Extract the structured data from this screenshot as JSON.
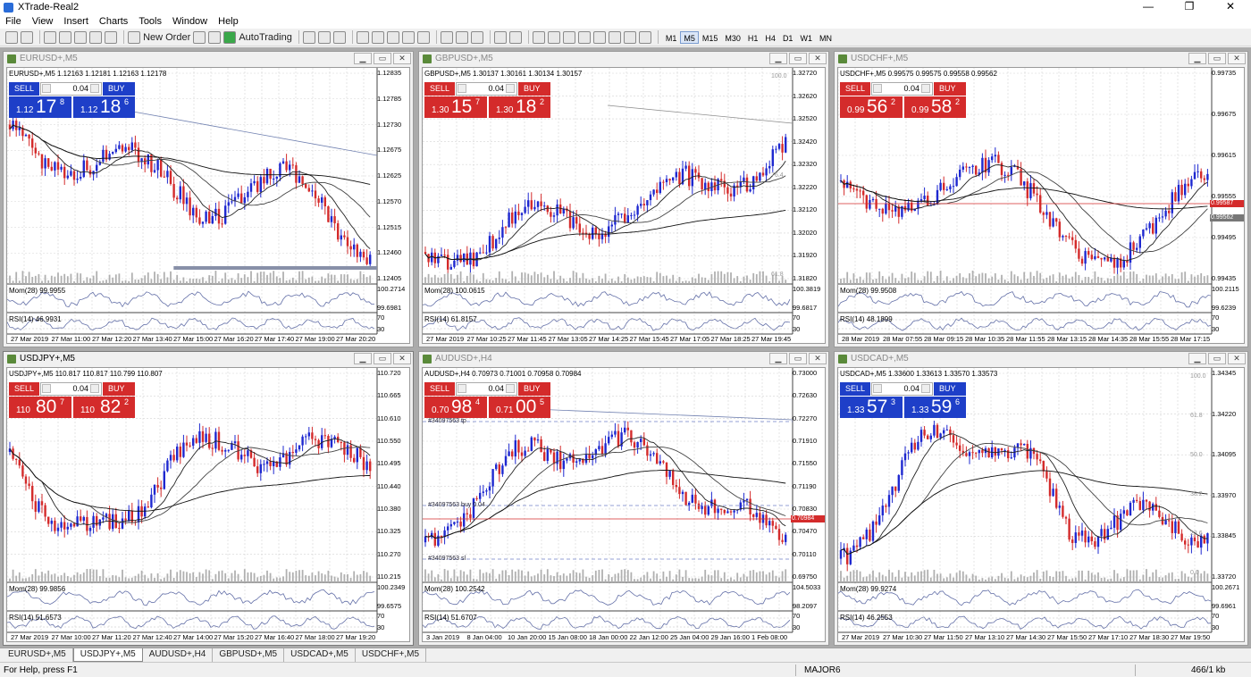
{
  "window": {
    "title": "XTrade-Real2",
    "minimize": "—",
    "maximize": "❐",
    "close": "✕"
  },
  "menu": [
    "File",
    "View",
    "Insert",
    "Charts",
    "Tools",
    "Window",
    "Help"
  ],
  "toolbar": {
    "new_order": "New Order",
    "auto_trading": "AutoTrading",
    "timeframes": [
      "M1",
      "M5",
      "M15",
      "M30",
      "H1",
      "H4",
      "D1",
      "W1",
      "MN"
    ],
    "active_timeframe": "M5"
  },
  "colors": {
    "bull": "#1e28d0",
    "bear": "#d42b2b",
    "sell_blue": "#1e3fc8",
    "sell_red": "#d42b2b"
  },
  "charts": [
    {
      "id": "eurusd",
      "title": "EURUSD+,M5",
      "active": false,
      "header": "EURUSD+,M5 1.12163 1.12181 1.12163 1.12178",
      "sell_label": "SELL",
      "buy_label": "BUY",
      "lot": "0.04",
      "color": "blue",
      "bid": {
        "pre": "1.12",
        "big": "17",
        "sup": "8"
      },
      "ask": {
        "pre": "1.12",
        "big": "18",
        "sup": "6"
      },
      "prices": [
        "1.12835",
        "1.12785",
        "1.12730",
        "1.12675",
        "1.12625",
        "1.12570",
        "1.12515",
        "1.12460",
        "1.12405"
      ],
      "mom": {
        "label": "Mom(28) 99.9955",
        "scale": [
          "100.2714",
          "99.6981"
        ]
      },
      "rsi": {
        "label": "RSI(14) 46.9931",
        "scale": [
          "70",
          "30"
        ]
      },
      "times": [
        "27 Mar 2019",
        "27 Mar 11:00",
        "27 Mar 12:20",
        "27 Mar 13:40",
        "27 Mar 15:00",
        "27 Mar 16:20",
        "27 Mar 17:40",
        "27 Mar 19:00",
        "27 Mar 20:20"
      ],
      "trend": "down"
    },
    {
      "id": "gbpusd",
      "title": "GBPUSD+,M5",
      "active": false,
      "header": "GBPUSD+,M5 1.30137 1.30161 1.30134 1.30157",
      "sell_label": "SELL",
      "buy_label": "BUY",
      "lot": "0.04",
      "color": "red",
      "bid": {
        "pre": "1.30",
        "big": "15",
        "sup": "7"
      },
      "ask": {
        "pre": "1.30",
        "big": "18",
        "sup": "2"
      },
      "prices": [
        "1.32720",
        "1.32620",
        "1.32520",
        "1.32420",
        "1.32320",
        "1.32220",
        "1.32120",
        "1.32020",
        "1.31920",
        "1.31820"
      ],
      "mom": {
        "label": "Mom(28) 100.0615",
        "scale": [
          "100.3819",
          "99.6817"
        ]
      },
      "rsi": {
        "label": "RSI(14) 61.8157",
        "scale": [
          "70",
          "30"
        ]
      },
      "times": [
        "27 Mar 2019",
        "27 Mar 10:25",
        "27 Mar 11:45",
        "27 Mar 13:05",
        "27 Mar 14:25",
        "27 Mar 15:45",
        "27 Mar 17:05",
        "27 Mar 18:25",
        "27 Mar 19:45"
      ],
      "fib": [
        "100.0",
        "76.4",
        "61.8"
      ],
      "trend": "up"
    },
    {
      "id": "usdchf",
      "title": "USDCHF+,M5",
      "active": false,
      "header": "USDCHF+,M5 0.99575 0.99575 0.99558 0.99562",
      "sell_label": "SELL",
      "buy_label": "BUY",
      "lot": "0.04",
      "color": "red",
      "bid": {
        "pre": "0.99",
        "big": "56",
        "sup": "2"
      },
      "ask": {
        "pre": "0.99",
        "big": "58",
        "sup": "2"
      },
      "prices": [
        "0.99735",
        "0.99675",
        "0.99615",
        "0.99555",
        "0.99495",
        "0.99435"
      ],
      "hl1": "0.99587",
      "hl2": "0.99562",
      "mom": {
        "label": "Mom(28) 99.9508",
        "scale": [
          "100.2115",
          "99.6239"
        ]
      },
      "rsi": {
        "label": "RSI(14) 48.1899",
        "scale": [
          "70",
          "30"
        ]
      },
      "times": [
        "28 Mar 2019",
        "28 Mar 07:55",
        "28 Mar 09:15",
        "28 Mar 10:35",
        "28 Mar 11:55",
        "28 Mar 13:15",
        "28 Mar 14:35",
        "28 Mar 15:55",
        "28 Mar 17:15"
      ],
      "trend": "flat"
    },
    {
      "id": "usdjpy",
      "title": "USDJPY+,M5",
      "active": true,
      "header": "USDJPY+,M5 110.817 110.817 110.799 110.807",
      "sell_label": "SELL",
      "buy_label": "BUY",
      "lot": "0.04",
      "color": "red",
      "bid": {
        "pre": "110",
        "big": "80",
        "sup": "7"
      },
      "ask": {
        "pre": "110",
        "big": "82",
        "sup": "2"
      },
      "prices": [
        "110.720",
        "110.665",
        "110.610",
        "110.550",
        "110.495",
        "110.440",
        "110.380",
        "110.325",
        "110.270",
        "110.215"
      ],
      "mom": {
        "label": "Mom(28) 99.9856",
        "scale": [
          "100.2349",
          "99.6575"
        ]
      },
      "rsi": {
        "label": "RSI(14) 51.6573",
        "scale": [
          "70",
          "30"
        ]
      },
      "times": [
        "27 Mar 2019",
        "27 Mar 10:00",
        "27 Mar 11:20",
        "27 Mar 12:40",
        "27 Mar 14:00",
        "27 Mar 15:20",
        "27 Mar 16:40",
        "27 Mar 18:00",
        "27 Mar 19:20"
      ],
      "trend": "vshape"
    },
    {
      "id": "audusd",
      "title": "AUDUSD+,H4",
      "active": false,
      "header": "AUDUSD+,H4 0.70973 0.71001 0.70958 0.70984",
      "sell_label": "SELL",
      "buy_label": "BUY",
      "lot": "0.04",
      "color": "red",
      "bid": {
        "pre": "0.70",
        "big": "98",
        "sup": "4"
      },
      "ask": {
        "pre": "0.71",
        "big": "00",
        "sup": "5"
      },
      "prices": [
        "0.73000",
        "0.72630",
        "0.72270",
        "0.71910",
        "0.71550",
        "0.71190",
        "0.70830",
        "0.70470",
        "0.70110",
        "0.69750"
      ],
      "hl1": "0.70984",
      "notes": [
        "#34097563 tp",
        "#34097563 buy 0.04",
        "#34097563 sl"
      ],
      "mom": {
        "label": "Mom(28) 100.2542",
        "scale": [
          "104.5033",
          "98.2097"
        ]
      },
      "rsi": {
        "label": "RSI(14) 51.6707",
        "scale": [
          "70",
          "30"
        ]
      },
      "times": [
        "3 Jan 2019",
        "8 Jan 04:00",
        "10 Jan 20:00",
        "15 Jan 08:00",
        "18 Jan 00:00",
        "22 Jan 12:00",
        "25 Jan 04:00",
        "29 Jan 16:00",
        "1 Feb 08:00"
      ],
      "trend": "audusd"
    },
    {
      "id": "usdcad",
      "title": "USDCAD+,M5",
      "active": false,
      "header": "USDCAD+,M5 1.33600 1.33613 1.33570 1.33573",
      "sell_label": "SELL",
      "buy_label": "BUY",
      "lot": "0.04",
      "color": "blue",
      "bid": {
        "pre": "1.33",
        "big": "57",
        "sup": "3"
      },
      "ask": {
        "pre": "1.33",
        "big": "59",
        "sup": "6"
      },
      "prices": [
        "1.34345",
        "1.34220",
        "1.34095",
        "1.33970",
        "1.33845",
        "1.33720"
      ],
      "fib": [
        "100.0",
        "61.8",
        "50.0",
        "38.2",
        "23.6",
        "0.0"
      ],
      "mom": {
        "label": "Mom(28) 99.9274",
        "scale": [
          "100.2671",
          "99.6961"
        ]
      },
      "rsi": {
        "label": "RSI(14) 46.2553",
        "scale": [
          "70",
          "30"
        ]
      },
      "times": [
        "27 Mar 2019",
        "27 Mar 10:30",
        "27 Mar 11:50",
        "27 Mar 13:10",
        "27 Mar 14:30",
        "27 Mar 15:50",
        "27 Mar 17:10",
        "27 Mar 18:30",
        "27 Mar 19:50"
      ],
      "trend": "cad"
    }
  ],
  "tabs": [
    "EURUSD+,M5",
    "USDJPY+,M5",
    "AUDUSD+,H4",
    "GBPUSD+,M5",
    "USDCAD+,M5",
    "USDCHF+,M5"
  ],
  "active_tab": "USDJPY+,M5",
  "status": {
    "help": "For Help, press F1",
    "profile": "MAJOR6",
    "traffic": "466/1 kb"
  }
}
